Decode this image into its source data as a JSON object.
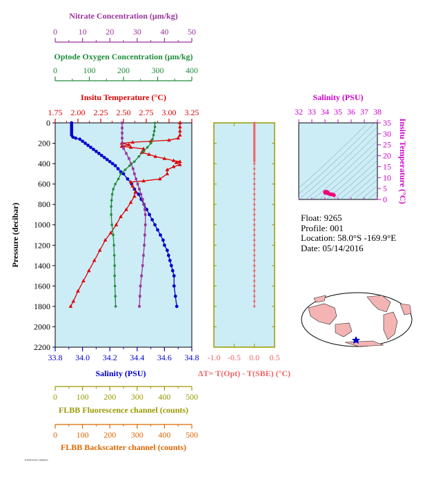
{
  "colors": {
    "panel_bg": "#ccecf6",
    "nitrate": "#993399",
    "oxygen": "#1f8c3a",
    "temperature": "#dd0000",
    "salinity": "#0000cc",
    "fluorescence": "#999900",
    "backscatter": "#dd6600",
    "delta_t": "#ee6666",
    "ts_axis": "#cc00cc",
    "ts_points": "#ee0077",
    "land": "#f4b4b4"
  },
  "info": {
    "float": "Float:  9265",
    "profile": "Profile:  001",
    "location": "Location:  58.0°S  -169.9°E",
    "date": "Date:  05/14/2016"
  },
  "footnote": "P4/09/2016 1200016",
  "chart_data": [
    {
      "type": "line",
      "title": "",
      "y_axis": {
        "label": "Pressure (decibar)",
        "ylim": [
          2200,
          0
        ],
        "ticks": [
          0,
          200,
          400,
          600,
          800,
          1000,
          1200,
          1400,
          1600,
          1800,
          2000,
          2200
        ],
        "inverted": true
      },
      "axes": {
        "nitrate": {
          "label": "Nitrate Concentration (μm/kg)",
          "xlim": [
            0,
            50
          ],
          "ticks": [
            0,
            10,
            20,
            30,
            40,
            50
          ],
          "position": "top"
        },
        "oxygen": {
          "label": "Optode Oxygen Concentration (μm/kg)",
          "xlim": [
            0,
            400
          ],
          "ticks": [
            0,
            100,
            200,
            300,
            400
          ],
          "position": "top"
        },
        "temperature": {
          "label": "Insitu Temperature (°C)",
          "xlim": [
            1.75,
            3.25
          ],
          "ticks": [
            "1.75",
            "2.00",
            "2.25",
            "2.50",
            "2.75",
            "3.00",
            "3.25"
          ],
          "position": "top"
        },
        "salinity": {
          "label": "Salinity (PSU)",
          "xlim": [
            33.8,
            34.8
          ],
          "ticks": [
            "33.8",
            "34.0",
            "34.2",
            "34.4",
            "34.6",
            "34.8"
          ],
          "position": "bottom"
        },
        "fluorescence": {
          "label": "FLBB Fluorescence channel (counts)",
          "xlim": [
            0,
            500
          ],
          "ticks": [
            0,
            100,
            200,
            300,
            400,
            500
          ],
          "position": "bottom"
        },
        "backscatter": {
          "label": "FLBB Backscatter channel (counts)",
          "xlim": [
            0,
            500
          ],
          "ticks": [
            0,
            100,
            200,
            300,
            400,
            500
          ],
          "position": "bottom"
        }
      },
      "series": [
        {
          "key": "salinity",
          "marker": "circle",
          "points": [
            [
              33.92,
              0
            ],
            [
              33.92,
              20
            ],
            [
              33.92,
              40
            ],
            [
              33.92,
              60
            ],
            [
              33.92,
              80
            ],
            [
              33.92,
              100
            ],
            [
              33.92,
              120
            ],
            [
              33.93,
              140
            ],
            [
              33.95,
              150
            ],
            [
              33.98,
              160
            ],
            [
              34.0,
              180
            ],
            [
              34.02,
              200
            ],
            [
              34.04,
              220
            ],
            [
              34.06,
              240
            ],
            [
              34.08,
              260
            ],
            [
              34.1,
              280
            ],
            [
              34.12,
              300
            ],
            [
              34.14,
              320
            ],
            [
              34.16,
              340
            ],
            [
              34.18,
              360
            ],
            [
              34.2,
              380
            ],
            [
              34.22,
              400
            ],
            [
              34.24,
              420
            ],
            [
              34.26,
              450
            ],
            [
              34.28,
              480
            ],
            [
              34.3,
              500
            ],
            [
              34.33,
              550
            ],
            [
              34.36,
              600
            ],
            [
              34.38,
              650
            ],
            [
              34.41,
              700
            ],
            [
              34.43,
              750
            ],
            [
              34.45,
              800
            ],
            [
              34.47,
              850
            ],
            [
              34.49,
              900
            ],
            [
              34.51,
              950
            ],
            [
              34.53,
              1000
            ],
            [
              34.55,
              1050
            ],
            [
              34.57,
              1100
            ],
            [
              34.59,
              1150
            ],
            [
              34.6,
              1200
            ],
            [
              34.62,
              1250
            ],
            [
              34.63,
              1300
            ],
            [
              34.64,
              1350
            ],
            [
              34.65,
              1400
            ],
            [
              34.66,
              1450
            ],
            [
              34.67,
              1500
            ],
            [
              34.67,
              1600
            ],
            [
              34.68,
              1700
            ],
            [
              34.69,
              1800
            ]
          ]
        },
        {
          "key": "temperature",
          "marker": "triangle",
          "points": [
            [
              3.12,
              0
            ],
            [
              3.12,
              40
            ],
            [
              3.12,
              80
            ],
            [
              3.12,
              120
            ],
            [
              3.1,
              150
            ],
            [
              3.0,
              170
            ],
            [
              2.8,
              180
            ],
            [
              2.6,
              190
            ],
            [
              2.48,
              200
            ],
            [
              2.56,
              215
            ],
            [
              2.48,
              230
            ],
            [
              2.58,
              240
            ],
            [
              2.72,
              255
            ],
            [
              2.72,
              270
            ],
            [
              2.7,
              290
            ],
            [
              2.78,
              310
            ],
            [
              2.85,
              330
            ],
            [
              2.95,
              350
            ],
            [
              3.05,
              370
            ],
            [
              3.12,
              380
            ],
            [
              3.08,
              390
            ],
            [
              3.12,
              410
            ],
            [
              3.05,
              430
            ],
            [
              2.98,
              460
            ],
            [
              2.98,
              500
            ],
            [
              2.9,
              550
            ],
            [
              2.72,
              570
            ],
            [
              2.58,
              580
            ],
            [
              2.6,
              620
            ],
            [
              2.63,
              680
            ],
            [
              2.62,
              720
            ],
            [
              2.58,
              780
            ],
            [
              2.53,
              850
            ],
            [
              2.47,
              920
            ],
            [
              2.42,
              1000
            ],
            [
              2.36,
              1080
            ],
            [
              2.3,
              1150
            ],
            [
              2.24,
              1250
            ],
            [
              2.18,
              1350
            ],
            [
              2.12,
              1450
            ],
            [
              2.06,
              1550
            ],
            [
              2.0,
              1650
            ],
            [
              1.95,
              1750
            ],
            [
              1.92,
              1800
            ]
          ]
        },
        {
          "key": "nitrate",
          "marker": "square",
          "points": [
            [
              24.5,
              0
            ],
            [
              24.5,
              50
            ],
            [
              24.5,
              100
            ],
            [
              24.5,
              150
            ],
            [
              24.6,
              200
            ],
            [
              25.0,
              250
            ],
            [
              26.0,
              300
            ],
            [
              27.0,
              350
            ],
            [
              27.8,
              400
            ],
            [
              28.5,
              450
            ],
            [
              29.0,
              500
            ],
            [
              29.6,
              550
            ],
            [
              30.2,
              600
            ],
            [
              30.8,
              650
            ],
            [
              31.4,
              700
            ],
            [
              32.0,
              750
            ],
            [
              32.5,
              800
            ],
            [
              32.8,
              850
            ],
            [
              33.0,
              900
            ],
            [
              33.0,
              1000
            ],
            [
              32.8,
              1100
            ],
            [
              32.6,
              1200
            ],
            [
              32.3,
              1300
            ],
            [
              32.0,
              1400
            ],
            [
              31.6,
              1500
            ],
            [
              31.2,
              1600
            ],
            [
              31.0,
              1700
            ],
            [
              30.8,
              1800
            ]
          ]
        },
        {
          "key": "oxygen",
          "marker": "dot",
          "points": [
            [
              292,
              0
            ],
            [
              292,
              40
            ],
            [
              290,
              80
            ],
            [
              288,
              120
            ],
            [
              285,
              160
            ],
            [
              280,
              200
            ],
            [
              270,
              240
            ],
            [
              258,
              280
            ],
            [
              245,
              330
            ],
            [
              232,
              380
            ],
            [
              218,
              420
            ],
            [
              205,
              460
            ],
            [
              192,
              500
            ],
            [
              185,
              550
            ],
            [
              176,
              600
            ],
            [
              170,
              650
            ],
            [
              167,
              700
            ],
            [
              165,
              760
            ],
            [
              164,
              820
            ],
            [
              164,
              900
            ],
            [
              166,
              1000
            ],
            [
              170,
              1100
            ],
            [
              172,
              1200
            ],
            [
              173,
              1300
            ],
            [
              174,
              1400
            ],
            [
              174,
              1500
            ],
            [
              175,
              1600
            ],
            [
              176,
              1700
            ],
            [
              177,
              1800
            ]
          ]
        }
      ]
    },
    {
      "type": "scatter",
      "title": "",
      "xlabel": "ΔT= T(Opt) - T(SBE) (°C)",
      "xlim": [
        -1.0,
        0.5
      ],
      "x_ticks": [
        "-1.0",
        "-0.5",
        "0.0",
        "0.5"
      ],
      "ylim": [
        2200,
        0
      ],
      "x_value": 0.0,
      "depths": [
        0,
        25,
        50,
        75,
        100,
        125,
        150,
        175,
        200,
        225,
        250,
        275,
        300,
        325,
        350,
        375,
        400,
        450,
        500,
        550,
        600,
        650,
        700,
        750,
        800,
        850,
        900,
        950,
        1000,
        1050,
        1100,
        1150,
        1200,
        1250,
        1300,
        1350,
        1400,
        1450,
        1500,
        1550,
        1600,
        1650,
        1700,
        1750,
        1800
      ]
    },
    {
      "type": "scatter",
      "title": "Salinity (PSU)",
      "ylabel": "Insitu Temperature (°C)",
      "xlim": [
        32,
        38
      ],
      "ylim": [
        0,
        35
      ],
      "x_ticks": [
        32,
        33,
        34,
        35,
        36,
        37,
        38
      ],
      "y_ticks": [
        0,
        5,
        10,
        15,
        20,
        25,
        30,
        35
      ],
      "points": [
        [
          34.0,
          3.1
        ],
        [
          34.05,
          3.05
        ],
        [
          34.1,
          3.0
        ],
        [
          34.15,
          2.95
        ],
        [
          34.2,
          2.9
        ],
        [
          34.25,
          2.75
        ],
        [
          34.3,
          2.6
        ],
        [
          34.35,
          2.55
        ],
        [
          34.4,
          2.45
        ],
        [
          34.45,
          2.4
        ],
        [
          34.5,
          2.35
        ],
        [
          34.55,
          2.3
        ],
        [
          34.6,
          2.25
        ],
        [
          34.62,
          2.2
        ],
        [
          34.64,
          2.1
        ],
        [
          34.66,
          2.05
        ],
        [
          34.68,
          2.0
        ],
        [
          34.69,
          1.95
        ],
        [
          34.0,
          3.5
        ],
        [
          34.1,
          3.6
        ],
        [
          34.2,
          3.4
        ]
      ]
    }
  ]
}
